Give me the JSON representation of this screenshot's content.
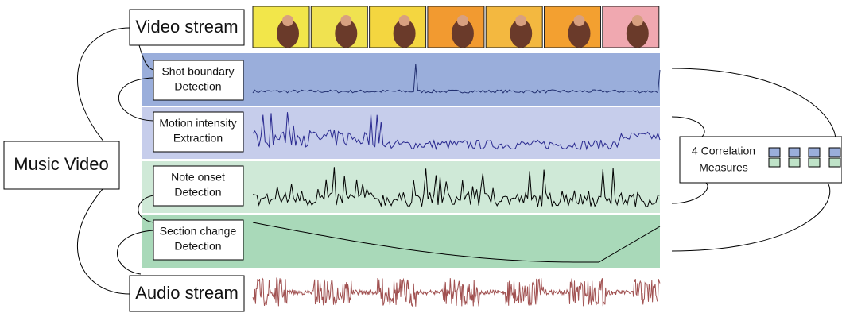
{
  "source": "Music Video",
  "streams": {
    "video": "Video stream",
    "audio": "Audio stream"
  },
  "modules": [
    {
      "lines": [
        "Shot boundary",
        "Detection"
      ]
    },
    {
      "lines": [
        "Motion intensity",
        "Extraction"
      ]
    },
    {
      "lines": [
        "Note onset",
        "Detection"
      ]
    },
    {
      "lines": [
        "Section change",
        "Detection"
      ]
    }
  ],
  "output": {
    "lines": [
      "4 Correlation",
      "Measures"
    ]
  }
}
